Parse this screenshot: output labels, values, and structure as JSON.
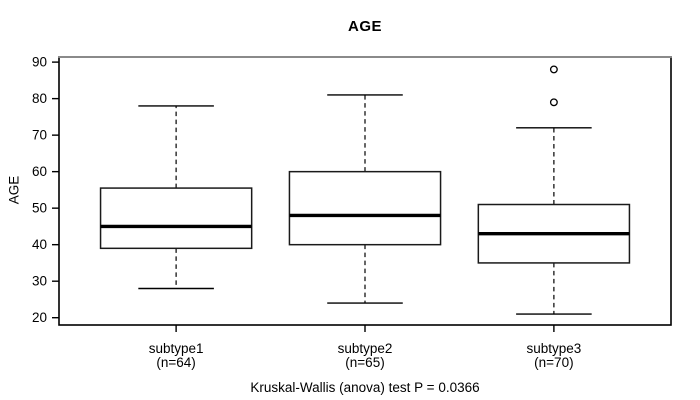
{
  "title": "AGE",
  "y_axis": {
    "label": "AGE"
  },
  "caption": "Kruskal-Wallis (anova) test P = 0.0366",
  "colors": {
    "stroke": "#000000",
    "box_border": "#1a1a1a",
    "frame_top_gray": "#8a8a8a",
    "background": "#ffffff"
  },
  "chart_data": {
    "type": "boxplot",
    "title": "AGE",
    "xlabel": "",
    "ylabel": "AGE",
    "ylim": [
      18,
      91.4
    ],
    "yticks": [
      20,
      30,
      40,
      50,
      60,
      70,
      80,
      90
    ],
    "grid": false,
    "legend": "none",
    "caption": "Kruskal-Wallis (anova) test P = 0.0366",
    "groups": [
      {
        "label": "subtype1",
        "sublabel": "(n=64)",
        "n": 64,
        "whisker_low": 28,
        "q1": 39,
        "median": 45,
        "q3": 55.5,
        "whisker_high": 78,
        "outliers": []
      },
      {
        "label": "subtype2",
        "sublabel": "(n=65)",
        "n": 65,
        "whisker_low": 24,
        "q1": 40,
        "median": 48,
        "q3": 60,
        "whisker_high": 81,
        "outliers": []
      },
      {
        "label": "subtype3",
        "sublabel": "(n=70)",
        "n": 70,
        "whisker_low": 21,
        "q1": 35,
        "median": 43,
        "q3": 51,
        "whisker_high": 72,
        "outliers": [
          79,
          88
        ]
      }
    ]
  }
}
